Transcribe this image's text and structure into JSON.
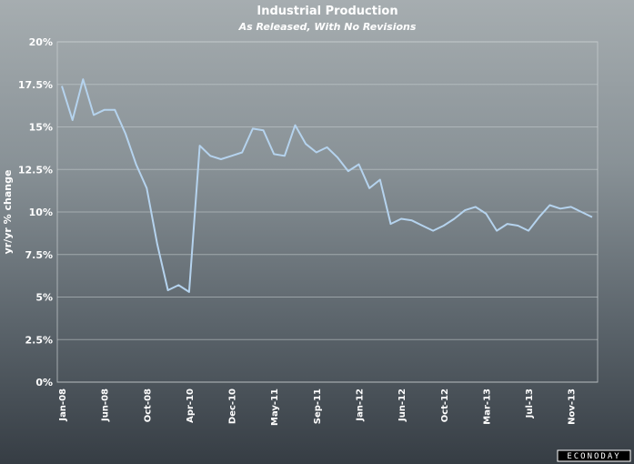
{
  "chart_data": {
    "type": "line",
    "title": "Industrial Production",
    "subtitle": "As Released, With No Revisions",
    "ylabel": "yr/yr % change",
    "xlabel": "",
    "ylim": [
      0,
      20
    ],
    "yticks": [
      0,
      2.5,
      5,
      7.5,
      10,
      12.5,
      15,
      17.5,
      20
    ],
    "ytick_labels": [
      "0%",
      "2.5%",
      "5%",
      "7.5%",
      "10%",
      "12.5%",
      "15%",
      "17.5%",
      "20%"
    ],
    "xtick_labels": [
      "Jan-08",
      "Jun-08",
      "Oct-08",
      "Apr-10",
      "Dec-10",
      "May-11",
      "Sep-11",
      "Jan-12",
      "Jun-12",
      "Oct-12",
      "Mar-13",
      "Jul-13",
      "Nov-13"
    ],
    "xtick_indices": [
      0,
      4,
      8,
      12,
      16,
      20,
      24,
      28,
      32,
      36,
      40,
      44,
      48
    ],
    "grid": true,
    "legend": "none",
    "series": [
      {
        "color": "#b5d3ee",
        "values": [
          17.4,
          15.4,
          17.8,
          15.7,
          16.0,
          16.0,
          14.6,
          12.8,
          11.4,
          8.1,
          5.4,
          5.7,
          5.3,
          13.9,
          13.3,
          13.1,
          13.3,
          13.5,
          14.9,
          14.8,
          13.4,
          13.3,
          15.1,
          14.0,
          13.5,
          13.8,
          13.2,
          12.4,
          12.8,
          11.4,
          11.9,
          9.3,
          9.6,
          9.5,
          9.2,
          8.9,
          9.2,
          9.6,
          10.1,
          10.3,
          9.9,
          8.9,
          9.3,
          9.2,
          8.9,
          9.7,
          10.4,
          10.2,
          10.3,
          10.0,
          9.7
        ]
      }
    ]
  },
  "logo": {
    "text": "ECONODAY"
  }
}
